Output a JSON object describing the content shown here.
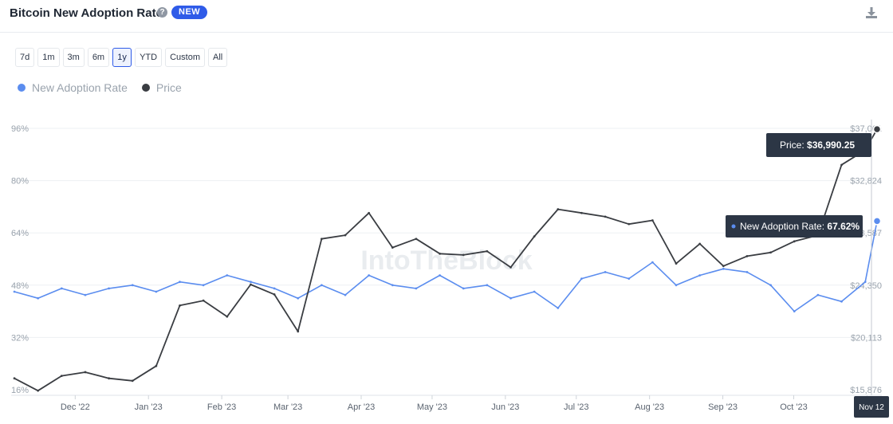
{
  "header": {
    "title": "Bitcoin New Adoption Rate",
    "help_icon": "?",
    "badge": "NEW",
    "download_icon": "download-icon"
  },
  "range_buttons": [
    {
      "label": "7d",
      "active": false
    },
    {
      "label": "1m",
      "active": false
    },
    {
      "label": "3m",
      "active": false
    },
    {
      "label": "6m",
      "active": false
    },
    {
      "label": "1y",
      "active": true
    },
    {
      "label": "YTD",
      "active": false
    },
    {
      "label": "Custom",
      "active": false
    },
    {
      "label": "All",
      "active": false
    }
  ],
  "legend": [
    {
      "label": "New Adoption Rate",
      "color": "#5b8def"
    },
    {
      "label": "Price",
      "color": "#3a3d42"
    }
  ],
  "watermark": "IntoTheBlock",
  "tooltips": {
    "price_label": "Price: ",
    "price_value": "$36,990.25",
    "rate_label": "New Adoption Rate: ",
    "rate_value": "67.62%"
  },
  "crosshair_date": "Nov 12",
  "chart_data": {
    "type": "line",
    "title": "Bitcoin New Adoption Rate",
    "x_tick_labels": [
      "Dec '22",
      "Jan '23",
      "Feb '23",
      "Mar '23",
      "Apr '23",
      "May '23",
      "Jun '23",
      "Jul '23",
      "Aug '23",
      "Sep '23",
      "Oct '23",
      "Nov '"
    ],
    "left_axis": {
      "ticks": [
        "96%",
        "80%",
        "64%",
        "48%",
        "32%",
        "16%"
      ],
      "values": [
        96,
        80,
        64,
        48,
        32,
        16
      ],
      "range": [
        16,
        96
      ]
    },
    "right_axis": {
      "ticks": [
        "$37,061",
        "$32,824",
        "$28,587",
        "$24,350",
        "$20,113",
        "$15,876"
      ],
      "values": [
        37061,
        32824,
        28587,
        24350,
        20113,
        15876
      ],
      "range": [
        15876,
        37061
      ]
    },
    "grid": true,
    "legend_position": "top-left",
    "series": [
      {
        "name": "New Adoption Rate",
        "axis": "left",
        "color": "#5b8def",
        "points": [
          [
            "2022-11-12",
            46
          ],
          [
            "2022-11-22",
            44
          ],
          [
            "2022-12-02",
            47
          ],
          [
            "2022-12-12",
            45
          ],
          [
            "2022-12-22",
            47
          ],
          [
            "2023-01-01",
            48
          ],
          [
            "2023-01-11",
            46
          ],
          [
            "2023-01-21",
            49
          ],
          [
            "2023-01-31",
            48
          ],
          [
            "2023-02-10",
            51
          ],
          [
            "2023-02-20",
            49
          ],
          [
            "2023-03-02",
            47
          ],
          [
            "2023-03-12",
            44
          ],
          [
            "2023-03-22",
            48
          ],
          [
            "2023-04-01",
            45
          ],
          [
            "2023-04-11",
            51
          ],
          [
            "2023-04-21",
            48
          ],
          [
            "2023-05-01",
            47
          ],
          [
            "2023-05-11",
            51
          ],
          [
            "2023-05-21",
            47
          ],
          [
            "2023-05-31",
            48
          ],
          [
            "2023-06-10",
            44
          ],
          [
            "2023-06-20",
            46
          ],
          [
            "2023-06-30",
            41
          ],
          [
            "2023-07-10",
            50
          ],
          [
            "2023-07-20",
            52
          ],
          [
            "2023-07-30",
            50
          ],
          [
            "2023-08-09",
            55
          ],
          [
            "2023-08-19",
            48
          ],
          [
            "2023-08-29",
            51
          ],
          [
            "2023-09-08",
            53
          ],
          [
            "2023-09-18",
            52
          ],
          [
            "2023-09-28",
            48
          ],
          [
            "2023-10-08",
            40
          ],
          [
            "2023-10-18",
            45
          ],
          [
            "2023-10-28",
            43
          ],
          [
            "2023-11-07",
            49
          ],
          [
            "2023-11-12",
            67.62
          ]
        ]
      },
      {
        "name": "Price",
        "axis": "right",
        "color": "#3a3d42",
        "points": [
          [
            "2022-11-12",
            16800
          ],
          [
            "2022-11-22",
            15800
          ],
          [
            "2022-12-02",
            17000
          ],
          [
            "2022-12-12",
            17300
          ],
          [
            "2022-12-22",
            16800
          ],
          [
            "2023-01-01",
            16600
          ],
          [
            "2023-01-11",
            17800
          ],
          [
            "2023-01-21",
            22700
          ],
          [
            "2023-01-31",
            23100
          ],
          [
            "2023-02-10",
            21800
          ],
          [
            "2023-02-20",
            24400
          ],
          [
            "2023-03-02",
            23600
          ],
          [
            "2023-03-12",
            20600
          ],
          [
            "2023-03-22",
            28100
          ],
          [
            "2023-04-01",
            28400
          ],
          [
            "2023-04-11",
            30200
          ],
          [
            "2023-04-21",
            27400
          ],
          [
            "2023-05-01",
            28100
          ],
          [
            "2023-05-11",
            26900
          ],
          [
            "2023-05-21",
            26800
          ],
          [
            "2023-05-31",
            27100
          ],
          [
            "2023-06-10",
            25800
          ],
          [
            "2023-06-20",
            28300
          ],
          [
            "2023-06-30",
            30500
          ],
          [
            "2023-07-10",
            30200
          ],
          [
            "2023-07-20",
            29900
          ],
          [
            "2023-07-30",
            29300
          ],
          [
            "2023-08-09",
            29600
          ],
          [
            "2023-08-19",
            26100
          ],
          [
            "2023-08-29",
            27700
          ],
          [
            "2023-09-08",
            25900
          ],
          [
            "2023-09-18",
            26700
          ],
          [
            "2023-09-28",
            27000
          ],
          [
            "2023-10-08",
            27900
          ],
          [
            "2023-10-18",
            28400
          ],
          [
            "2023-10-28",
            34100
          ],
          [
            "2023-11-07",
            35300
          ],
          [
            "2023-11-12",
            36990.25
          ]
        ]
      }
    ]
  }
}
